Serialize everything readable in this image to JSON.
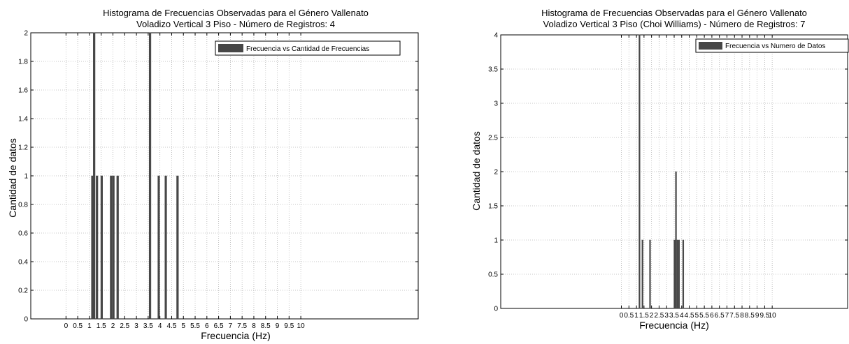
{
  "colors": {
    "bar": "#474747",
    "grid": "#b5b5b5",
    "axis": "#000000",
    "background": "#ffffff"
  },
  "chart_data": [
    {
      "type": "bar",
      "title": "Histograma de Frecuencias Observadas para el Género Vallenato",
      "subtitle": "Voladizo Vertical 3 Piso - Número de Registros: 4",
      "xlabel": "Frecuencia (Hz)",
      "ylabel": "Cantidad de datos",
      "xlim": [
        -1.5,
        15
      ],
      "ylim": [
        0,
        2
      ],
      "xticks": [
        0,
        0.5,
        1,
        1.5,
        2,
        2.5,
        3,
        3.5,
        4,
        4.5,
        5,
        5.5,
        6,
        6.5,
        7,
        7.5,
        8,
        8.5,
        9,
        9.5,
        10
      ],
      "xtick_labels": [
        "0",
        "0.5",
        "1",
        "1.5",
        "2",
        "2.5",
        "3",
        "3.5",
        "4",
        "4.5",
        "5",
        "5.5",
        "6",
        "6.5",
        "7",
        "7.5",
        "8",
        "8.5",
        "9",
        "9.5",
        "10"
      ],
      "yticks": [
        0,
        0.2,
        0.4,
        0.6,
        0.8,
        1,
        1.2,
        1.4,
        1.6,
        1.8,
        2
      ],
      "ytick_labels": [
        "0",
        "0.2",
        "0.4",
        "0.6",
        "0.8",
        "1",
        "1.2",
        "1.4",
        "1.6",
        "1.8",
        "2"
      ],
      "grid": true,
      "legend": "top-right",
      "bar_width": 0.08,
      "series": [
        {
          "name": "Frecuencia vs Cantidad de Frecuencias",
          "x": [
            1.12,
            1.2,
            1.32,
            1.52,
            1.92,
            2.02,
            2.2,
            3.58,
            3.95,
            4.25,
            4.75
          ],
          "values": [
            1,
            2,
            1,
            1,
            1,
            1,
            1,
            2,
            1,
            1,
            1
          ]
        }
      ]
    },
    {
      "type": "bar",
      "title": "Histograma de Frecuencias Observadas para el Género Vallenato",
      "subtitle": "Voladizo Vertical 3 Piso (Choi Williams) - Número de Registros: 7",
      "xlabel": "Frecuencia (Hz)",
      "ylabel": "Cantidad de datos",
      "xlim": [
        -8,
        15
      ],
      "ylim": [
        0,
        4
      ],
      "xticks": [
        0,
        0.5,
        1,
        1.5,
        2,
        2.5,
        3,
        3.5,
        4,
        4.5,
        5,
        5.5,
        6,
        6.5,
        7,
        7.5,
        8,
        8.5,
        9,
        9.5,
        10
      ],
      "xtick_labels": [
        "0",
        "0.5",
        "1",
        "1.5",
        "2",
        "2.5",
        "3",
        "3.5",
        "4",
        "4.5",
        "5",
        "5.5",
        "6",
        "6.5",
        "7",
        "7.5",
        "8",
        "8.5",
        "9",
        "9.5",
        "10"
      ],
      "yticks": [
        0,
        0.5,
        1,
        1.5,
        2,
        2.5,
        3,
        3.5,
        4
      ],
      "ytick_labels": [
        "0",
        "0.5",
        "1",
        "1.5",
        "2",
        "2.5",
        "3",
        "3.5",
        "4"
      ],
      "grid": true,
      "legend": "top-right",
      "bar_width": 0.08,
      "series": [
        {
          "name": "Frecuencia vs Numero de Datos",
          "x": [
            1.2,
            1.4,
            1.9,
            3.52,
            3.62,
            3.72,
            3.82,
            4.1
          ],
          "values": [
            4,
            1,
            1,
            1,
            2,
            1,
            1,
            1
          ]
        }
      ]
    }
  ]
}
